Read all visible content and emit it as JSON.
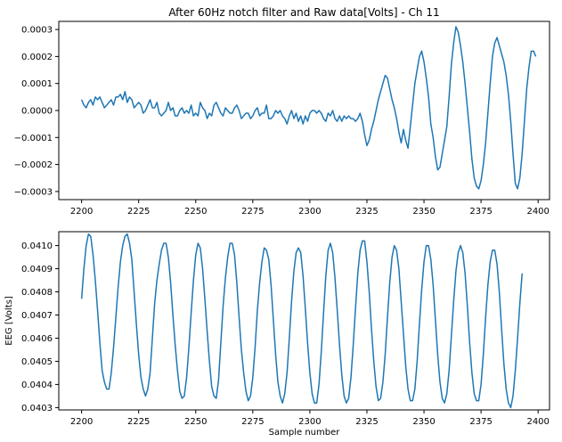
{
  "chart_data": [
    {
      "type": "line",
      "title": "After 60Hz notch filter and Raw data[Volts] - Ch 11",
      "xlabel": "",
      "ylabel": "",
      "xlim": [
        2190,
        2405
      ],
      "ylim": [
        -0.00033,
        0.00033
      ],
      "grid": false,
      "color": "#1f77b4",
      "x_ticks": [
        2200,
        2225,
        2250,
        2275,
        2300,
        2325,
        2350,
        2375,
        2400
      ],
      "x_tick_labels": [
        "2200",
        "2225",
        "2250",
        "2275",
        "2300",
        "2325",
        "2350",
        "2375",
        "2400"
      ],
      "y_ticks": [
        -0.0003,
        -0.0002,
        -0.0001,
        0.0,
        0.0001,
        0.0002,
        0.0003
      ],
      "y_tick_labels": [
        "−0.0003",
        "−0.0002",
        "−0.0001",
        "0.0000",
        "0.0001",
        "0.0002",
        "0.0003"
      ],
      "series": [
        {
          "x_start": 2200,
          "x_step": 1,
          "values": [
            4e-05,
            2e-05,
            1e-05,
            3e-05,
            4e-05,
            2e-05,
            5e-05,
            4e-05,
            5e-05,
            3e-05,
            1e-05,
            2e-05,
            3e-05,
            4e-05,
            2e-05,
            5e-05,
            5e-05,
            6e-05,
            4e-05,
            7e-05,
            3e-05,
            5e-05,
            4e-05,
            1e-05,
            2e-05,
            3e-05,
            2e-05,
            -1e-05,
            0.0,
            2e-05,
            4e-05,
            1e-05,
            1e-05,
            3e-05,
            -1e-05,
            -2e-05,
            -1e-05,
            0.0,
            3e-05,
            0.0,
            1e-05,
            -2e-05,
            -2e-05,
            0.0,
            1e-05,
            -1e-05,
            0.0,
            -1e-05,
            2e-05,
            -2e-05,
            -1e-05,
            -2e-05,
            3e-05,
            1e-05,
            0.0,
            -3e-05,
            -1e-05,
            -2e-05,
            2e-05,
            3e-05,
            1e-05,
            -1e-05,
            -2e-05,
            1e-05,
            0.0,
            -1e-05,
            -1e-05,
            1e-05,
            2e-05,
            0.0,
            -3e-05,
            -2e-05,
            -1e-05,
            -1e-05,
            -3e-05,
            -2e-05,
            0.0,
            1e-05,
            -2e-05,
            -1e-05,
            -1e-05,
            2e-05,
            -3e-05,
            -3e-05,
            -2e-05,
            0.0,
            -1e-05,
            0.0,
            -2e-05,
            -3e-05,
            -5e-05,
            -2e-05,
            0.0,
            -3e-05,
            -1e-05,
            -4e-05,
            -2e-05,
            -5e-05,
            -2e-05,
            -4e-05,
            -1e-05,
            0.0,
            0.0,
            -1e-05,
            0.0,
            -1e-05,
            -3e-05,
            -4e-05,
            -1e-05,
            -2e-05,
            0.0,
            -3e-05,
            -4e-05,
            -2e-05,
            -4e-05,
            -2e-05,
            -3e-05,
            -2e-05,
            -3e-05,
            -3e-05,
            -4e-05,
            -3e-05,
            -1e-05,
            -4e-05,
            -9e-05,
            -0.00013,
            -0.00011,
            -7e-05,
            -4e-05,
            0.0,
            4e-05,
            7e-05,
            0.0001,
            0.00013,
            0.00012,
            8e-05,
            4e-05,
            1e-05,
            -3e-05,
            -8e-05,
            -0.00012,
            -7e-05,
            -0.00011,
            -0.00014,
            -6e-05,
            2e-05,
            0.0001,
            0.00015,
            0.0002,
            0.00022,
            0.00018,
            0.00012,
            5e-05,
            -5e-05,
            -0.0001,
            -0.00017,
            -0.00022,
            -0.00021,
            -0.00016,
            -0.00011,
            -6e-05,
            5e-05,
            0.00017,
            0.00025,
            0.00031,
            0.00029,
            0.00024,
            0.00018,
            0.0001,
            1e-05,
            -8e-05,
            -0.00018,
            -0.00025,
            -0.00028,
            -0.00029,
            -0.00026,
            -0.0002,
            -0.00012,
            -1e-05,
            0.0001,
            0.0002,
            0.00025,
            0.00027,
            0.00024,
            0.00021,
            0.00018,
            0.00013,
            6e-05,
            -4e-05,
            -0.00016,
            -0.00027,
            -0.00029,
            -0.00025,
            -0.00016,
            -4e-05,
            8e-05,
            0.00016,
            0.00022,
            0.00022,
            0.0002
          ]
        }
      ]
    },
    {
      "type": "line",
      "title": "",
      "xlabel": "Sample number",
      "ylabel": "EEG [Volts]",
      "xlim": [
        2190,
        2405
      ],
      "ylim": [
        0.04029,
        0.04106
      ],
      "grid": false,
      "color": "#1f77b4",
      "x_ticks": [
        2200,
        2225,
        2250,
        2275,
        2300,
        2325,
        2350,
        2375,
        2400
      ],
      "x_tick_labels": [
        "2200",
        "2225",
        "2250",
        "2275",
        "2300",
        "2325",
        "2350",
        "2375",
        "2400"
      ],
      "y_ticks": [
        0.0403,
        0.0404,
        0.0405,
        0.0406,
        0.0407,
        0.0408,
        0.0409,
        0.041
      ],
      "y_tick_labels": [
        "0.0403",
        "0.0404",
        "0.0405",
        "0.0406",
        "0.0407",
        "0.0408",
        "0.0409",
        "0.0410"
      ],
      "series": [
        {
          "x_start": 2200,
          "x_step": 1,
          "values": [
            0.04077,
            0.0409,
            0.041,
            0.04105,
            0.04104,
            0.04096,
            0.04085,
            0.04072,
            0.04058,
            0.04046,
            0.04041,
            0.04038,
            0.04038,
            0.04045,
            0.04056,
            0.04069,
            0.04082,
            0.04093,
            0.041,
            0.04104,
            0.04105,
            0.04101,
            0.04094,
            0.0408,
            0.04066,
            0.04053,
            0.04043,
            0.04038,
            0.04035,
            0.04038,
            0.04045,
            0.0406,
            0.04075,
            0.04085,
            0.04092,
            0.04098,
            0.04101,
            0.04101,
            0.04095,
            0.04084,
            0.0407,
            0.04057,
            0.04046,
            0.04037,
            0.04034,
            0.04035,
            0.04043,
            0.04056,
            0.04071,
            0.04085,
            0.04096,
            0.04101,
            0.04099,
            0.0409,
            0.04077,
            0.04063,
            0.0405,
            0.04039,
            0.04035,
            0.04034,
            0.04042,
            0.04058,
            0.04074,
            0.04086,
            0.04095,
            0.04101,
            0.04101,
            0.04096,
            0.04084,
            0.04069,
            0.04055,
            0.04045,
            0.04037,
            0.04033,
            0.04035,
            0.04043,
            0.04056,
            0.04072,
            0.04084,
            0.04093,
            0.04099,
            0.04098,
            0.04094,
            0.04083,
            0.04068,
            0.04053,
            0.04041,
            0.04035,
            0.04032,
            0.04036,
            0.04045,
            0.0406,
            0.04076,
            0.04089,
            0.04097,
            0.04099,
            0.04097,
            0.04087,
            0.04073,
            0.04058,
            0.04045,
            0.04036,
            0.04032,
            0.04032,
            0.0404,
            0.04054,
            0.04071,
            0.04087,
            0.04098,
            0.04101,
            0.04097,
            0.04086,
            0.04072,
            0.04057,
            0.04044,
            0.04035,
            0.04032,
            0.04034,
            0.04043,
            0.04057,
            0.04073,
            0.04088,
            0.04098,
            0.04102,
            0.04102,
            0.04093,
            0.0408,
            0.04064,
            0.0405,
            0.04039,
            0.04033,
            0.04034,
            0.04041,
            0.04053,
            0.04069,
            0.04084,
            0.04095,
            0.041,
            0.04098,
            0.0409,
            0.04076,
            0.04062,
            0.04048,
            0.04038,
            0.04033,
            0.04033,
            0.04038,
            0.0405,
            0.04066,
            0.04081,
            0.04093,
            0.041,
            0.041,
            0.04094,
            0.04083,
            0.04068,
            0.04053,
            0.04041,
            0.04034,
            0.04032,
            0.04036,
            0.04046,
            0.04061,
            0.04076,
            0.04089,
            0.04097,
            0.041,
            0.04097,
            0.04088,
            0.04074,
            0.04058,
            0.04045,
            0.04036,
            0.04033,
            0.04033,
            0.0404,
            0.04053,
            0.04069,
            0.04083,
            0.04093,
            0.04098,
            0.04098,
            0.04092,
            0.0408,
            0.04064,
            0.04049,
            0.04038,
            0.04032,
            0.0403,
            0.04035,
            0.04046,
            0.0406,
            0.04075,
            0.04088
          ]
        }
      ]
    }
  ]
}
